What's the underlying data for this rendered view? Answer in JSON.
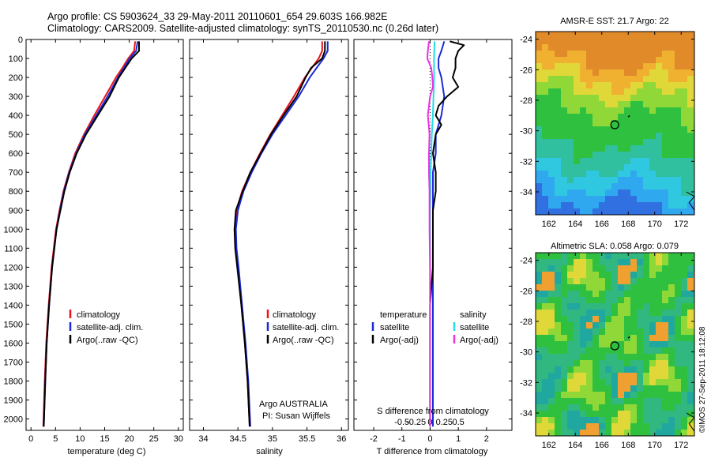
{
  "figure": {
    "title_line1": "Argo profile: CS 5903624_33 29-May-2011 20110601_654 29.603S 166.982E",
    "title_line2": "Climatology: CARS2009. Satellite-adjusted climatology: synTS_20110530.nc (0.26d later)",
    "footer": "©IMOS 27-Sep-2011 18:12:08",
    "credit_line1": "Argo AUSTRALIA",
    "credit_line2": "PI: Susan Wijffels"
  },
  "legend": {
    "temp_panel": [
      "climatology",
      "satellite-adj. clim.",
      "Argo(..raw -QC)"
    ],
    "sal_panel": [
      "climatology",
      "satellite-adj. clim.",
      "Argo(..raw -QC)"
    ],
    "diff_left_header": "temperature",
    "diff_left": [
      "satellite",
      "Argo(-adj)"
    ],
    "diff_right_header": "salinity",
    "diff_right": [
      "satellite",
      "Argo(-adj)"
    ]
  },
  "colors": {
    "climatology": "#e8141c",
    "satellite_adj": "#1a2ad6",
    "argo": "#000000",
    "t_diff_satellite": "#1a2ad6",
    "t_diff_argo": "#000000",
    "s_diff_satellite": "#22dde8",
    "s_diff_argo": "#e833e0"
  },
  "chart_data": [
    {
      "type": "line",
      "name": "temperature",
      "xlabel": "temperature (deg C)",
      "ylabel": "",
      "xlim": [
        -1,
        31
      ],
      "ylim": [
        2060,
        0
      ],
      "xticks": [
        0,
        5,
        10,
        15,
        20,
        25,
        30
      ],
      "yticks": [
        0,
        100,
        200,
        300,
        400,
        500,
        600,
        700,
        800,
        900,
        1000,
        1100,
        1200,
        1300,
        1400,
        1500,
        1600,
        1700,
        1800,
        1900,
        2000
      ],
      "series": [
        {
          "name": "climatology",
          "depth": [
            10,
            60,
            100,
            150,
            200,
            300,
            400,
            500,
            600,
            700,
            800,
            900,
            1000,
            1200,
            1400,
            1600,
            1800,
            2040
          ],
          "values": [
            21.2,
            21.0,
            19.8,
            18.6,
            17.3,
            15.1,
            12.9,
            10.8,
            9.0,
            7.7,
            6.6,
            5.8,
            5.1,
            4.2,
            3.6,
            3.1,
            2.8,
            2.5
          ]
        },
        {
          "name": "satellite-adj. clim.",
          "depth": [
            10,
            60,
            100,
            150,
            200,
            300,
            400,
            500,
            600,
            700,
            800,
            900,
            1000,
            1200,
            1400,
            1600,
            1800,
            2040
          ],
          "values": [
            21.7,
            21.4,
            20.1,
            18.9,
            17.7,
            15.6,
            13.3,
            11.0,
            9.2,
            7.8,
            6.7,
            5.9,
            5.2,
            4.3,
            3.7,
            3.2,
            2.9,
            2.6
          ]
        },
        {
          "name": "Argo(..raw -QC)",
          "depth": [
            10,
            60,
            100,
            150,
            200,
            300,
            400,
            500,
            600,
            700,
            800,
            900,
            1000,
            1200,
            1400,
            1600,
            1800,
            2040
          ],
          "values": [
            22.0,
            22.0,
            20.5,
            19.2,
            17.9,
            16.0,
            13.6,
            11.2,
            9.3,
            7.9,
            6.8,
            6.0,
            5.2,
            4.3,
            3.7,
            3.2,
            2.9,
            2.6
          ]
        }
      ]
    },
    {
      "type": "line",
      "name": "salinity",
      "xlabel": "salinity",
      "ylabel": "",
      "xlim": [
        33.8,
        36.1
      ],
      "ylim": [
        2060,
        0
      ],
      "xticks": [
        34,
        34.5,
        35,
        35.5,
        36
      ],
      "series": [
        {
          "name": "climatology",
          "depth": [
            10,
            60,
            100,
            150,
            200,
            300,
            400,
            500,
            600,
            700,
            800,
            900,
            1000,
            1100,
            1200,
            1400,
            1600,
            1800,
            2040
          ],
          "values": [
            35.72,
            35.72,
            35.67,
            35.57,
            35.47,
            35.31,
            35.14,
            34.97,
            34.82,
            34.68,
            34.56,
            34.48,
            34.46,
            34.47,
            34.5,
            34.55,
            34.6,
            34.64,
            34.67
          ]
        },
        {
          "name": "satellite-adj. clim.",
          "depth": [
            10,
            60,
            100,
            150,
            200,
            300,
            400,
            500,
            600,
            700,
            800,
            900,
            1000,
            1100,
            1200,
            1400,
            1600,
            1800,
            2040
          ],
          "values": [
            35.8,
            35.8,
            35.74,
            35.64,
            35.54,
            35.38,
            35.19,
            35.0,
            34.84,
            34.7,
            34.58,
            34.5,
            34.47,
            34.48,
            34.51,
            34.56,
            34.61,
            34.65,
            34.68
          ]
        },
        {
          "name": "Argo(..raw -QC)",
          "depth": [
            10,
            60,
            100,
            150,
            200,
            300,
            400,
            500,
            600,
            700,
            800,
            900,
            1000,
            1100,
            1200,
            1400,
            1600,
            1800,
            2040
          ],
          "values": [
            35.76,
            35.76,
            35.72,
            35.56,
            35.48,
            35.35,
            35.16,
            34.98,
            34.83,
            34.68,
            34.57,
            34.47,
            34.45,
            34.46,
            34.49,
            34.55,
            34.6,
            34.64,
            34.67
          ]
        }
      ]
    },
    {
      "type": "line",
      "name": "difference from climatology",
      "xlabel": "T difference from climatology",
      "xlabel2": "S difference from climatology",
      "xlim": [
        -2.7,
        2.9
      ],
      "ylim": [
        2060,
        0
      ],
      "xticks": [
        -2,
        -1,
        0,
        1,
        2
      ],
      "s_xtick_labels": [
        "-0.5",
        "-0.25",
        "0",
        "0.25",
        "0.5"
      ],
      "s_xtick_values": [
        -0.5,
        -0.25,
        0,
        0.25,
        0.5
      ],
      "series": [
        {
          "name": "temperature satellite",
          "depth": [
            10,
            60,
            100,
            150,
            200,
            300,
            400,
            500,
            600,
            700,
            800,
            900,
            1000,
            1200,
            1400,
            1600,
            1800,
            2040
          ],
          "values": [
            0.5,
            0.4,
            0.3,
            0.3,
            0.4,
            0.5,
            0.4,
            0.2,
            0.2,
            0.1,
            0.1,
            0.1,
            0.1,
            0.1,
            0.1,
            0.1,
            0.1,
            0.1
          ]
        },
        {
          "name": "temperature Argo(-adj)",
          "depth": [
            10,
            30,
            60,
            100,
            150,
            200,
            250,
            300,
            350,
            400,
            450,
            500,
            600,
            700,
            800,
            900,
            1000,
            1200,
            1400,
            1600,
            1800,
            2040
          ],
          "values": [
            0.7,
            1.2,
            1.0,
            0.9,
            0.9,
            0.8,
            1.0,
            0.6,
            0.3,
            0.2,
            0.4,
            0.2,
            0.1,
            0.2,
            0.2,
            0.1,
            0.1,
            0.1,
            0.0,
            0.0,
            0.0,
            0.0
          ]
        },
        {
          "name": "salinity satellite",
          "depth": [
            10,
            100,
            200,
            300,
            400,
            500,
            600,
            700,
            800,
            900,
            1000,
            1200,
            1400,
            1600,
            1800,
            2040
          ],
          "values": [
            0.08,
            0.07,
            0.07,
            0.06,
            0.05,
            0.03,
            0.02,
            0.01,
            0.01,
            0.0,
            0.0,
            0.0,
            0.0,
            0.0,
            0.0,
            0.0
          ]
        },
        {
          "name": "salinity Argo(-adj)",
          "depth": [
            10,
            60,
            100,
            150,
            200,
            250,
            300,
            350,
            400,
            500,
            600,
            700,
            800,
            900,
            1000,
            1200,
            1400,
            1600,
            1800,
            2040
          ],
          "values": [
            -0.02,
            -0.04,
            -0.05,
            0.02,
            0.04,
            0.05,
            0.0,
            -0.02,
            -0.04,
            -0.01,
            -0.02,
            -0.02,
            -0.01,
            -0.01,
            -0.01,
            0.0,
            0.0,
            0.0,
            0.0,
            0.0
          ]
        }
      ]
    },
    {
      "type": "heatmap",
      "name": "sst map",
      "title": "AMSR-E SST: 21.7 Argo: 22",
      "xlim": [
        161,
        173
      ],
      "ylim": [
        -35.5,
        -23.5
      ],
      "xticks": [
        162,
        164,
        166,
        168,
        170,
        172
      ],
      "yticks": [
        -24,
        -26,
        -28,
        -30,
        -32,
        -34
      ],
      "marker": {
        "lon": 166.982,
        "lat": -29.603
      }
    },
    {
      "type": "heatmap",
      "name": "sla map",
      "title": "Altimetric SLA: 0.058 Argo: 0.079",
      "xlim": [
        161,
        173
      ],
      "ylim": [
        -35.5,
        -23.5
      ],
      "xticks": [
        162,
        164,
        166,
        168,
        170,
        172
      ],
      "yticks": [
        -24,
        -26,
        -28,
        -30,
        -32,
        -34
      ],
      "marker": {
        "lon": 166.982,
        "lat": -29.603
      }
    }
  ]
}
